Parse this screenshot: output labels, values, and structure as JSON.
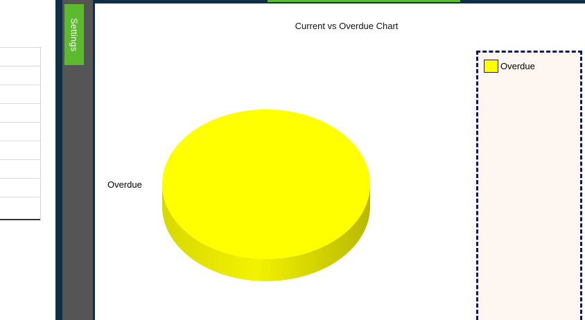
{
  "sidebar": {
    "settings_label": "Settings"
  },
  "chart_data": {
    "type": "pie",
    "title": "Current vs Overdue Chart",
    "labels": [
      "Overdue"
    ],
    "values": [
      1
    ],
    "colors": [
      "#ffff00"
    ],
    "legend": {
      "placement": "right",
      "entries": [
        "Overdue"
      ]
    },
    "style": "3d"
  }
}
